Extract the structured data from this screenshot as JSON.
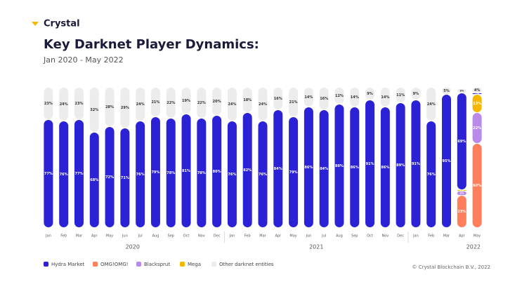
{
  "brand": "Crystal",
  "footer": "© Crystal Blockchain B.V., 2022",
  "chart_data": {
    "type": "stacked_bar",
    "title": "Key Darknet Player Dynamics:",
    "subtitle": "Jan 2020 - May 2022",
    "categories": [
      "Jan",
      "Feb",
      "Mar",
      "Apr",
      "May",
      "Jun",
      "Jul",
      "Aug",
      "Sep",
      "Oct",
      "Nov",
      "Dec",
      "Jan",
      "Feb",
      "Mar",
      "Apr",
      "May",
      "Jun",
      "Jul",
      "Aug",
      "Sep",
      "Oct",
      "Nov",
      "Dec",
      "Jan",
      "Feb",
      "Mar",
      "Apr",
      "May"
    ],
    "year_groups": [
      {
        "label": "2020",
        "months": 12
      },
      {
        "label": "2021",
        "months": 12
      },
      {
        "label": "2022",
        "months": 5
      }
    ],
    "ylim": [
      0,
      100
    ],
    "series": [
      {
        "name": "Hydra Market",
        "color": "#2b22d6",
        "values": [
          77,
          76,
          77,
          68,
          72,
          71,
          76,
          79,
          78,
          81,
          78,
          80,
          76,
          82,
          76,
          84,
          79,
          86,
          84,
          88,
          86,
          91,
          86,
          89,
          91,
          76,
          95,
          69,
          1
        ],
        "value_labels": [
          "77%",
          "76%",
          "77%",
          "68%",
          "72%",
          "71%",
          "76%",
          "79%",
          "78%",
          "81%",
          "78%",
          "80%",
          "76%",
          "82%",
          "76%",
          "84%",
          "79%",
          "86%",
          "84%",
          "88%",
          "86%",
          "91%",
          "86%",
          "89%",
          "91%",
          "76%",
          "95%",
          "69%",
          "1%"
        ]
      },
      {
        "name": "OMG!OMG!",
        "color": "#ff7f5c",
        "values": [
          null,
          null,
          null,
          null,
          null,
          null,
          null,
          null,
          null,
          null,
          null,
          null,
          null,
          null,
          null,
          null,
          null,
          null,
          null,
          null,
          null,
          null,
          null,
          null,
          null,
          null,
          null,
          23,
          60
        ],
        "value_labels": [
          null,
          null,
          null,
          null,
          null,
          null,
          null,
          null,
          null,
          null,
          null,
          null,
          null,
          null,
          null,
          null,
          null,
          null,
          null,
          null,
          null,
          null,
          null,
          null,
          null,
          null,
          null,
          "23%",
          "60%"
        ]
      },
      {
        "name": "Blacksprut",
        "color": "#b98ae8",
        "values": [
          null,
          null,
          null,
          null,
          null,
          null,
          null,
          null,
          null,
          null,
          null,
          null,
          null,
          null,
          null,
          null,
          null,
          null,
          null,
          null,
          null,
          null,
          null,
          null,
          null,
          null,
          null,
          3,
          22
        ],
        "value_labels": [
          null,
          null,
          null,
          null,
          null,
          null,
          null,
          null,
          null,
          null,
          null,
          null,
          null,
          null,
          null,
          null,
          null,
          null,
          null,
          null,
          null,
          null,
          null,
          null,
          null,
          null,
          null,
          "3%",
          "22%"
        ]
      },
      {
        "name": "Mega",
        "color": "#f5b800",
        "values": [
          null,
          null,
          null,
          null,
          null,
          null,
          null,
          null,
          null,
          null,
          null,
          null,
          null,
          null,
          null,
          null,
          null,
          null,
          null,
          null,
          null,
          null,
          null,
          null,
          null,
          null,
          null,
          1,
          13
        ],
        "value_labels": [
          null,
          null,
          null,
          null,
          null,
          null,
          null,
          null,
          null,
          null,
          null,
          null,
          null,
          null,
          null,
          null,
          null,
          null,
          null,
          null,
          null,
          null,
          null,
          null,
          null,
          null,
          null,
          "1%",
          "13%"
        ]
      },
      {
        "name": "Other darknet entities",
        "color": "#ececec",
        "values": [
          23,
          24,
          23,
          32,
          28,
          29,
          24,
          21,
          22,
          19,
          22,
          20,
          24,
          18,
          24,
          16,
          21,
          14,
          16,
          12,
          14,
          9,
          14,
          11,
          9,
          24,
          5,
          3,
          4
        ],
        "value_labels": [
          "23%",
          "24%",
          "23%",
          "32%",
          "28%",
          "29%",
          "24%",
          "21%",
          "22%",
          "19%",
          "22%",
          "20%",
          "24%",
          "18%",
          "24%",
          "16%",
          "21%",
          "14%",
          "16%",
          "12%",
          "14%",
          "9%",
          "14%",
          "11%",
          "9%",
          "24%",
          "5%",
          "3%",
          "4%"
        ]
      }
    ]
  }
}
